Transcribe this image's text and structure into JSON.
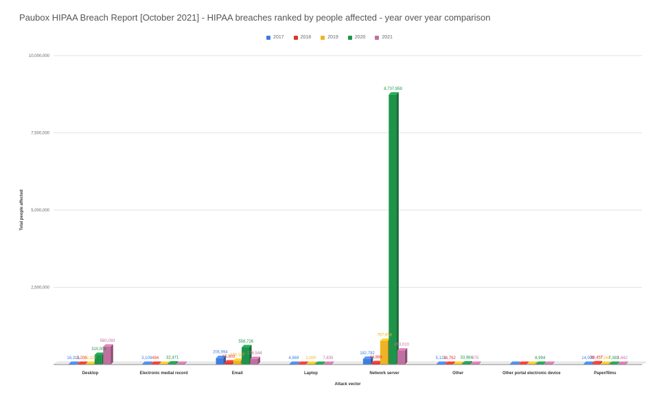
{
  "chart_data": {
    "type": "bar",
    "title": "Paubox HIPAA Breach Report [October 2021] - HIPAA breaches ranked by people affected - year over year comparison",
    "xlabel": "Attack vector",
    "ylabel": "Total people affected",
    "ylim": [
      0,
      10000000
    ],
    "yticks": [
      "2,500,000",
      "5,000,000",
      "7,500,000",
      "10,000,000"
    ],
    "ytick_values": [
      2500000,
      5000000,
      7500000,
      10000000
    ],
    "grid": true,
    "legend_position": "top-center",
    "categories": [
      "Desktop",
      "Electronic medial record",
      "Email",
      "Laptop",
      "Network server",
      "Other",
      "Other portal electronic device",
      "Paper/films"
    ],
    "series": [
      {
        "name": "2017",
        "color": "#3f7de0",
        "values": [
          18315,
          3109,
          206994,
          4869,
          182782,
          5121,
          null,
          14000
        ],
        "labels": [
          "18,315",
          "3,109",
          "206,994",
          "4,869",
          "182,782",
          "5,121",
          "",
          "14,000"
        ]
      },
      {
        "name": "2018",
        "color": "#d9372f",
        "values": [
          3206,
          494,
          65803,
          null,
          44896,
          16762,
          null,
          38457
        ],
        "labels": [
          "3,206",
          "494",
          "65,803",
          "",
          "44,896",
          "16,762",
          "",
          "38,457"
        ]
      },
      {
        "name": "2019",
        "color": "#f0b323",
        "values": [
          12227,
          null,
          120187,
          2000,
          767658,
          null,
          null,
          7244
        ],
        "labels": [
          "12,227",
          "",
          "120,187",
          "2,000",
          "767,658",
          "",
          "",
          "7,244"
        ]
      },
      {
        "name": "2020",
        "color": "#1e9449",
        "values": [
          310006,
          32471,
          558726,
          null,
          8737959,
          33984,
          8994,
          7383
        ],
        "labels": [
          "310,006",
          "32,471",
          "558,726",
          "",
          "8,737,959",
          "33,984",
          "8,994",
          "7,383"
        ]
      },
      {
        "name": "2021",
        "color": "#c06fa0",
        "values": [
          580093,
          null,
          176544,
          7835,
          453010,
          875,
          null,
          3442
        ],
        "labels": [
          "580,093",
          "",
          "176,544",
          "7,835",
          "453,010",
          "875",
          "",
          "3,442"
        ]
      }
    ]
  }
}
